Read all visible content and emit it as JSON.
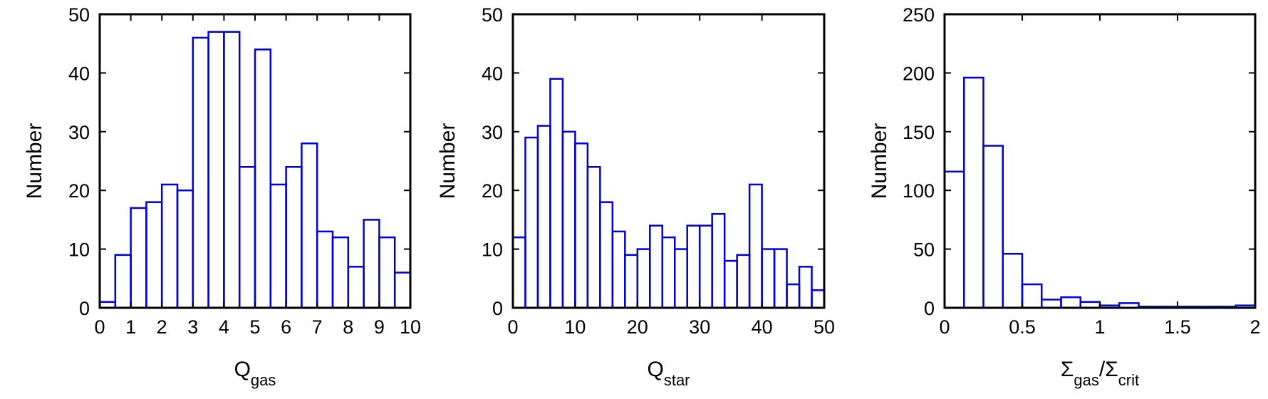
{
  "chart_data": [
    {
      "type": "bar",
      "xlabel": "Q",
      "xlabel_sub": "gas",
      "ylabel": "Number",
      "xlim": [
        0,
        10
      ],
      "ylim": [
        0,
        50
      ],
      "xticks": [
        0,
        1,
        2,
        3,
        4,
        5,
        6,
        7,
        8,
        9,
        10
      ],
      "xtick_labels": [
        "0",
        "1",
        "2",
        "3",
        "4",
        "5",
        "6",
        "7",
        "8",
        "9",
        "10"
      ],
      "yticks": [
        0,
        10,
        20,
        30,
        40,
        50
      ],
      "ytick_labels": [
        "0",
        "10",
        "20",
        "30",
        "40",
        "50"
      ],
      "bin_width": 0.5,
      "bin_edges_start": 0,
      "values": [
        1,
        9,
        17,
        18,
        21,
        20,
        46,
        47,
        47,
        24,
        44,
        21,
        24,
        28,
        13,
        12,
        7,
        15,
        12,
        6
      ],
      "bar_color": "#0000dd"
    },
    {
      "type": "bar",
      "xlabel": "Q",
      "xlabel_sub": "star",
      "ylabel": "Number",
      "xlim": [
        0,
        50
      ],
      "ylim": [
        0,
        50
      ],
      "xticks": [
        0,
        10,
        20,
        30,
        40,
        50
      ],
      "xtick_labels": [
        "0",
        "10",
        "20",
        "30",
        "40",
        "50"
      ],
      "yticks": [
        0,
        10,
        20,
        30,
        40,
        50
      ],
      "ytick_labels": [
        "0",
        "10",
        "20",
        "30",
        "40",
        "50"
      ],
      "bin_width": 2,
      "bin_edges_start": 0,
      "values": [
        12,
        29,
        31,
        39,
        30,
        28,
        24,
        18,
        13,
        9,
        10,
        14,
        12,
        10,
        14,
        14,
        16,
        8,
        9,
        21,
        10,
        10,
        4,
        7,
        3
      ],
      "bar_color": "#0000dd"
    },
    {
      "type": "bar",
      "xlabel": "Σ",
      "xlabel_sub": "gas",
      "xlabel_mid": "/Σ",
      "xlabel_sub2": "crit",
      "ylabel": "Number",
      "xlim": [
        0,
        2
      ],
      "ylim": [
        0,
        250
      ],
      "xticks": [
        0,
        0.5,
        1,
        1.5,
        2
      ],
      "xtick_labels": [
        "0",
        "0.5",
        "1",
        "1.5",
        "2"
      ],
      "yticks": [
        0,
        50,
        100,
        150,
        200,
        250
      ],
      "ytick_labels": [
        "0",
        "50",
        "100",
        "150",
        "200",
        "250"
      ],
      "bin_width": 0.125,
      "bin_edges_start": 0,
      "values": [
        116,
        196,
        138,
        46,
        20,
        7,
        9,
        5,
        2,
        4,
        1,
        1,
        1,
        1,
        1,
        2
      ],
      "bar_color": "#0000dd"
    }
  ]
}
